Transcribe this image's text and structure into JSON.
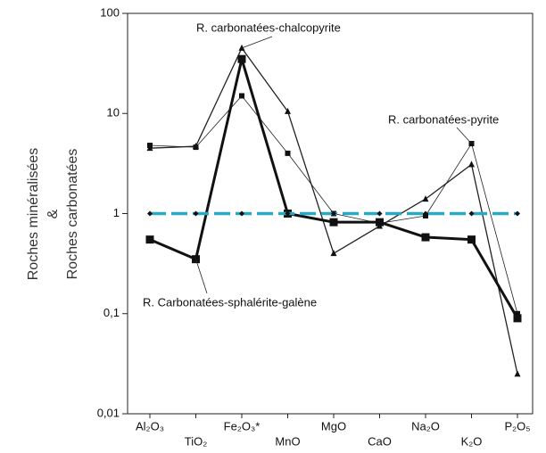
{
  "chart_data": {
    "type": "line",
    "y_label": [
      "Roches minéralisées",
      "&",
      "Roches carbonatées"
    ],
    "categories": [
      "Al₂O₃",
      "TiO₂",
      "Fe₂O₃*",
      "MnO",
      "MgO",
      "CaO",
      "Na₂O",
      "K₂O",
      "P₂O₅"
    ],
    "log_y": true,
    "ylim": [
      0.01,
      100
    ],
    "yticks": [
      {
        "value": 0.01,
        "label": "0,01"
      },
      {
        "value": 0.1,
        "label": "0,1"
      },
      1,
      10,
      100
    ],
    "series": [
      {
        "name": "R. carbonatées-chalcopyrite",
        "color": "#222222",
        "marker": "triangle",
        "line_width": 1.3,
        "values": [
          4.5,
          4.7,
          45,
          10.5,
          0.4,
          0.75,
          1.4,
          3.1,
          0.025
        ]
      },
      {
        "name": "R. carbonatées-pyrite",
        "color": "#222222",
        "marker": "square",
        "line_width": 0.8,
        "values": [
          4.8,
          4.6,
          15,
          4,
          1.0,
          0.8,
          0.95,
          5,
          0.1
        ]
      },
      {
        "name": "R. Carbonatées-sphalérite-galène",
        "color": "#111111",
        "marker": "bigsquare",
        "line_width": 3,
        "values": [
          0.55,
          0.35,
          35,
          1.0,
          0.82,
          0.82,
          0.58,
          0.55,
          0.09
        ]
      },
      {
        "color": "#29a9c4",
        "marker": "diamond",
        "line_width": 3.5,
        "dash": true,
        "values": [
          1,
          1,
          1,
          1,
          1,
          1,
          1,
          1,
          1
        ]
      }
    ]
  }
}
